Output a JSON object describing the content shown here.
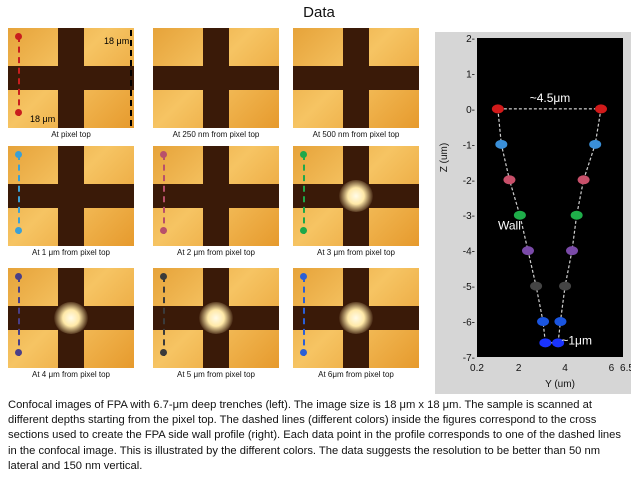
{
  "title": "Data",
  "panels": [
    {
      "caption": "At pixel top",
      "line_color": "#c81e1e",
      "glow": false
    },
    {
      "caption": "At 250 nm from pixel top",
      "line_color": "",
      "glow": false
    },
    {
      "caption": "At 500 nm from pixel top",
      "line_color": "",
      "glow": false
    },
    {
      "caption": "At 1 μm from pixel top",
      "line_color": "#3aa0d6",
      "glow": false
    },
    {
      "caption": "At 2 μm from pixel top",
      "line_color": "#b8506a",
      "glow": false
    },
    {
      "caption": "At 3 μm from pixel top",
      "line_color": "#1ea84a",
      "glow": true
    },
    {
      "caption": "At 4 μm from pixel top",
      "line_color": "#4a3f88",
      "glow": true
    },
    {
      "caption": "At 5 μm from pixel top",
      "line_color": "#3a3a3a",
      "glow": true
    },
    {
      "caption": "At 6μm from pixel top",
      "line_color": "#2a5fd6",
      "glow": true
    }
  ],
  "dims": {
    "width_label": "18 μm",
    "height_label": "18 μm"
  },
  "chart_data": {
    "type": "scatter",
    "title": "",
    "xlabel": "Y (um)",
    "ylabel": "Z (um)",
    "xlim": [
      0.2,
      6.5
    ],
    "ylim": [
      -7,
      2
    ],
    "x_ticks": [
      "0.2",
      "2",
      "4",
      "6",
      "6.5"
    ],
    "y_ticks": [
      "2-",
      "1-",
      "0-",
      "-1-",
      "-2-",
      "-3-",
      "-4-",
      "-5-",
      "-6-",
      "-7-"
    ],
    "series": [
      {
        "name": "left wall",
        "x": [
          1.1,
          1.25,
          1.6,
          2.05,
          2.4,
          2.75,
          3.05,
          3.15
        ],
        "z": [
          0,
          -1,
          -2,
          -3,
          -4,
          -5,
          -6,
          -6.6
        ]
      },
      {
        "name": "right wall",
        "x": [
          5.55,
          5.3,
          4.8,
          4.5,
          4.3,
          4.0,
          3.8,
          3.7
        ],
        "z": [
          0,
          -1,
          -2,
          -3,
          -4,
          -5,
          -6,
          -6.6
        ]
      }
    ],
    "point_colors": [
      "#d11a1a",
      "#3a8fd8",
      "#c8506a",
      "#1fae4a",
      "#7a4aa8",
      "#444444",
      "#1a55e0",
      "#1a33ff"
    ],
    "annotations": [
      {
        "text": "~4.5μm",
        "x": 3.35,
        "z": 0.2
      },
      {
        "text": "Wall",
        "x": 1.6,
        "z": -3.4
      },
      {
        "text": "~1μm",
        "x": 4.5,
        "z": -6.65
      }
    ]
  },
  "caption": "Confocal images of FPA with 6.7-μm deep trenches (left). The image size is 18 μm x 18 μm. The sample is scanned at different depths starting from the pixel top. The dashed lines (different colors) inside the figures correspond to the cross sections used to create the FPA side wall profile (right). Each data point in the profile corresponds to one of the dashed lines in the confocal image. This is illustrated by the different colors. The data suggests the resolution to be better than 50 nm lateral and 150 nm vertical."
}
